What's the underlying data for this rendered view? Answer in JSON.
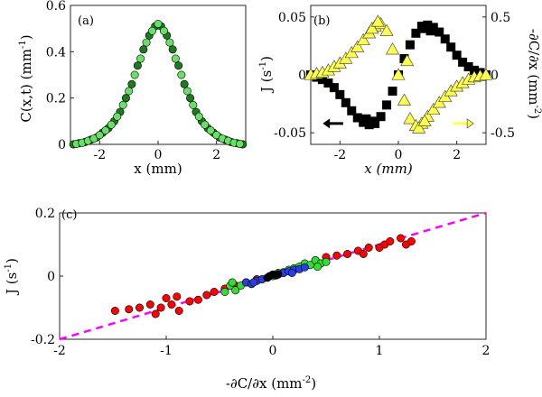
{
  "colors": {
    "c_dark_green": "#1f7a1f",
    "c_light_green": "#66e066",
    "flux_black": "#000000",
    "grad_yellow": "#ffff4d",
    "scatter_red": "#ff0000",
    "scatter_green": "#33dd33",
    "scatter_blue": "#2a3fe0",
    "scatter_black": "#000000",
    "fit_line": "#ff00ff"
  },
  "chart_data": [
    {
      "id": "a",
      "type": "scatter",
      "panel_label": "(a)",
      "xlabel": "x (mm)",
      "ylabel": "C(x,t) (mm",
      "ylabel_sup": "-1",
      "ylabel_close": ")",
      "xlim": [
        -3,
        3
      ],
      "ylim": [
        0,
        0.6
      ],
      "xticks": [
        -2,
        0,
        2
      ],
      "xtick_labels": [
        "-2",
        "0",
        "2"
      ],
      "yticks": [
        0,
        0.2,
        0.4,
        0.6
      ],
      "ytick_labels": [
        "0",
        "0.2",
        "0.4",
        "0.6"
      ],
      "series": [
        {
          "name": "dark",
          "marker": "circle",
          "color_key": "c_dark_green",
          "x": [
            -2.9,
            -2.7,
            -2.5,
            -2.3,
            -2.1,
            -1.9,
            -1.7,
            -1.5,
            -1.3,
            -1.1,
            -0.9,
            -0.7,
            -0.5,
            -0.3,
            -0.1,
            0.1,
            0.3,
            0.5,
            0.7,
            0.9,
            1.1,
            1.3,
            1.5,
            1.7,
            1.9,
            2.1,
            2.3,
            2.5,
            2.7,
            2.9
          ],
          "y": [
            0.0,
            0.005,
            0.01,
            0.02,
            0.03,
            0.05,
            0.07,
            0.1,
            0.14,
            0.2,
            0.26,
            0.34,
            0.41,
            0.47,
            0.51,
            0.51,
            0.47,
            0.41,
            0.34,
            0.26,
            0.2,
            0.14,
            0.1,
            0.07,
            0.05,
            0.03,
            0.02,
            0.01,
            0.005,
            0.0
          ]
        },
        {
          "name": "light",
          "marker": "circle",
          "color_key": "c_light_green",
          "x": [
            -2.8,
            -2.6,
            -2.4,
            -2.2,
            -2.0,
            -1.8,
            -1.6,
            -1.4,
            -1.2,
            -1.0,
            -0.8,
            -0.6,
            -0.4,
            -0.2,
            0.0,
            0.2,
            0.4,
            0.6,
            0.8,
            1.0,
            1.2,
            1.4,
            1.6,
            1.8,
            2.0,
            2.2,
            2.4,
            2.6,
            2.8
          ],
          "y": [
            0.002,
            0.007,
            0.015,
            0.025,
            0.04,
            0.06,
            0.085,
            0.12,
            0.17,
            0.23,
            0.3,
            0.37,
            0.44,
            0.49,
            0.52,
            0.49,
            0.44,
            0.37,
            0.3,
            0.23,
            0.17,
            0.12,
            0.085,
            0.06,
            0.04,
            0.025,
            0.015,
            0.007,
            0.002
          ]
        }
      ]
    },
    {
      "id": "b",
      "type": "scatter",
      "panel_label": "(b)",
      "xlabel": "x (mm)",
      "ylabel_left": "J (s",
      "ylabel_left_sup": "-1",
      "ylabel_left_close": ")",
      "ylabel_right": "-∂C/∂x (mm",
      "ylabel_right_sup": "-2",
      "ylabel_right_close": ")",
      "xlim": [
        -3,
        3
      ],
      "ylim_left": [
        -0.06,
        0.06
      ],
      "ylim_right": [
        -0.6,
        0.6
      ],
      "xticks": [
        -2,
        0,
        2
      ],
      "xtick_labels": [
        "-2",
        "0",
        "2"
      ],
      "yticks_left": [
        -0.05,
        0,
        0.05
      ],
      "ytick_labels_left": [
        "-0.05",
        "0",
        "0.05"
      ],
      "yticks_right": [
        -0.5,
        0,
        0.5
      ],
      "ytick_labels_right": [
        "-0.5",
        "0",
        "0.5"
      ],
      "series": [
        {
          "name": "J",
          "axis": "left",
          "marker": "square",
          "color_key": "flux_black",
          "x": [
            -3.0,
            -2.8,
            -2.6,
            -2.4,
            -2.2,
            -2.0,
            -1.8,
            -1.6,
            -1.4,
            -1.2,
            -1.0,
            -0.8,
            -0.6,
            -0.4,
            -0.2,
            0.0,
            0.2,
            0.4,
            0.6,
            0.8,
            1.0,
            1.2,
            1.4,
            1.6,
            1.8,
            2.0,
            2.2,
            2.4,
            2.6,
            2.8,
            3.0,
            -1.1,
            -0.9,
            0.9,
            1.1
          ],
          "y": [
            0.0,
            -0.002,
            -0.004,
            -0.007,
            -0.011,
            -0.017,
            -0.024,
            -0.031,
            -0.037,
            -0.041,
            -0.043,
            -0.042,
            -0.036,
            -0.026,
            -0.014,
            0.0,
            0.014,
            0.026,
            0.036,
            0.042,
            0.043,
            0.041,
            0.037,
            0.031,
            0.024,
            0.017,
            0.011,
            0.007,
            0.004,
            0.002,
            0.0,
            -0.038,
            -0.04,
            0.04,
            0.038
          ]
        },
        {
          "name": "gradient",
          "axis": "right",
          "marker": "triangle",
          "color_key": "grad_yellow",
          "x": [
            -3.0,
            -2.8,
            -2.6,
            -2.4,
            -2.2,
            -2.0,
            -1.8,
            -1.6,
            -1.4,
            -1.2,
            -1.0,
            -0.8,
            -0.6,
            -0.4,
            -0.2,
            0.0,
            0.2,
            0.4,
            0.6,
            0.8,
            1.0,
            1.2,
            1.4,
            1.6,
            1.8,
            2.0,
            2.2,
            2.4,
            2.6,
            2.8,
            3.0,
            -0.9,
            -0.7,
            0.7,
            0.9,
            0.3
          ],
          "y": [
            0.0,
            0.01,
            0.02,
            0.04,
            0.07,
            0.1,
            0.14,
            0.19,
            0.24,
            0.3,
            0.36,
            0.42,
            0.44,
            0.38,
            0.22,
            0.0,
            -0.22,
            -0.38,
            -0.44,
            -0.42,
            -0.36,
            -0.3,
            -0.24,
            -0.19,
            -0.14,
            -0.1,
            -0.07,
            -0.04,
            -0.02,
            -0.01,
            0.0,
            0.4,
            0.46,
            -0.46,
            -0.4,
            0.12
          ]
        }
      ],
      "arrows": [
        {
          "direction": "left",
          "color_key": "flux_black",
          "x": -2.2,
          "axis": "left",
          "y": -0.042
        },
        {
          "direction": "right",
          "color_key": "grad_yellow",
          "x": 2.2,
          "axis": "left",
          "y": -0.042
        }
      ]
    },
    {
      "id": "c",
      "type": "scatter",
      "panel_label": "(c)",
      "xlabel": "-∂C/∂x (mm",
      "xlabel_sup": "-2",
      "xlabel_close": ")",
      "ylabel": "J (s",
      "ylabel_sup": "-1",
      "ylabel_close": ")",
      "xlim": [
        -2,
        2
      ],
      "ylim": [
        -0.2,
        0.2
      ],
      "xticks": [
        -2,
        -1,
        0,
        1,
        2
      ],
      "xtick_labels": [
        "-2",
        "-1",
        "0",
        "1",
        "2"
      ],
      "yticks": [
        -0.2,
        0,
        0.2
      ],
      "ytick_labels": [
        "-0.2",
        "0",
        "0.2"
      ],
      "fit_line": {
        "slope": 0.1,
        "intercept": 0,
        "color_key": "fit_line",
        "style": "dashed"
      },
      "series": [
        {
          "name": "red",
          "marker": "circle",
          "color_key": "scatter_red",
          "x": [
            -1.48,
            -1.35,
            -1.25,
            -1.15,
            -1.05,
            -1.0,
            -0.95,
            -0.88,
            -0.78,
            -0.7,
            -0.62,
            -0.55,
            -0.45,
            -0.35,
            -0.25,
            -0.15,
            0.1,
            0.2,
            0.3,
            0.4,
            0.5,
            0.6,
            0.7,
            0.8,
            0.9,
            1.0,
            1.05,
            1.1,
            1.2,
            1.25,
            1.3,
            -1.1,
            -0.9,
            0.45,
            0.85
          ],
          "y": [
            -0.11,
            -0.105,
            -0.1,
            -0.09,
            -0.1,
            -0.07,
            -0.09,
            -0.11,
            -0.08,
            -0.075,
            -0.06,
            -0.05,
            -0.04,
            -0.03,
            -0.02,
            -0.01,
            0.01,
            0.02,
            0.03,
            0.05,
            0.06,
            0.065,
            0.07,
            0.08,
            0.09,
            0.09,
            0.1,
            0.11,
            0.12,
            0.1,
            0.11,
            -0.12,
            -0.065,
            0.04,
            0.07
          ]
        },
        {
          "name": "green",
          "marker": "circle",
          "color_key": "scatter_green",
          "x": [
            -0.45,
            -0.4,
            -0.35,
            -0.3,
            -0.25,
            -0.2,
            -0.15,
            -0.1,
            0.0,
            0.05,
            0.1,
            0.15,
            0.2,
            0.25,
            0.3,
            0.35,
            0.4,
            0.45,
            0.5,
            -0.38,
            0.42
          ],
          "y": [
            -0.05,
            -0.03,
            -0.045,
            -0.03,
            -0.02,
            -0.025,
            -0.015,
            -0.01,
            0.0,
            0.01,
            0.012,
            0.02,
            0.025,
            0.03,
            0.04,
            0.035,
            0.05,
            0.04,
            0.045,
            -0.02,
            0.03
          ]
        },
        {
          "name": "blue",
          "marker": "circle",
          "color_key": "scatter_blue",
          "x": [
            -0.25,
            -0.2,
            -0.15,
            -0.1,
            -0.05,
            0.05,
            0.1,
            0.15,
            0.2,
            0.25,
            0.3,
            -0.18,
            0.18
          ],
          "y": [
            -0.02,
            -0.025,
            -0.015,
            -0.01,
            -0.005,
            0.005,
            0.01,
            0.015,
            0.02,
            0.022,
            0.028,
            -0.02,
            0.01
          ]
        },
        {
          "name": "black",
          "marker": "circle",
          "color_key": "scatter_black",
          "x": [
            -0.05,
            -0.03,
            0.0,
            0.03,
            0.05
          ],
          "y": [
            -0.005,
            0.0,
            0.005,
            0.002,
            0.006
          ]
        }
      ]
    }
  ]
}
